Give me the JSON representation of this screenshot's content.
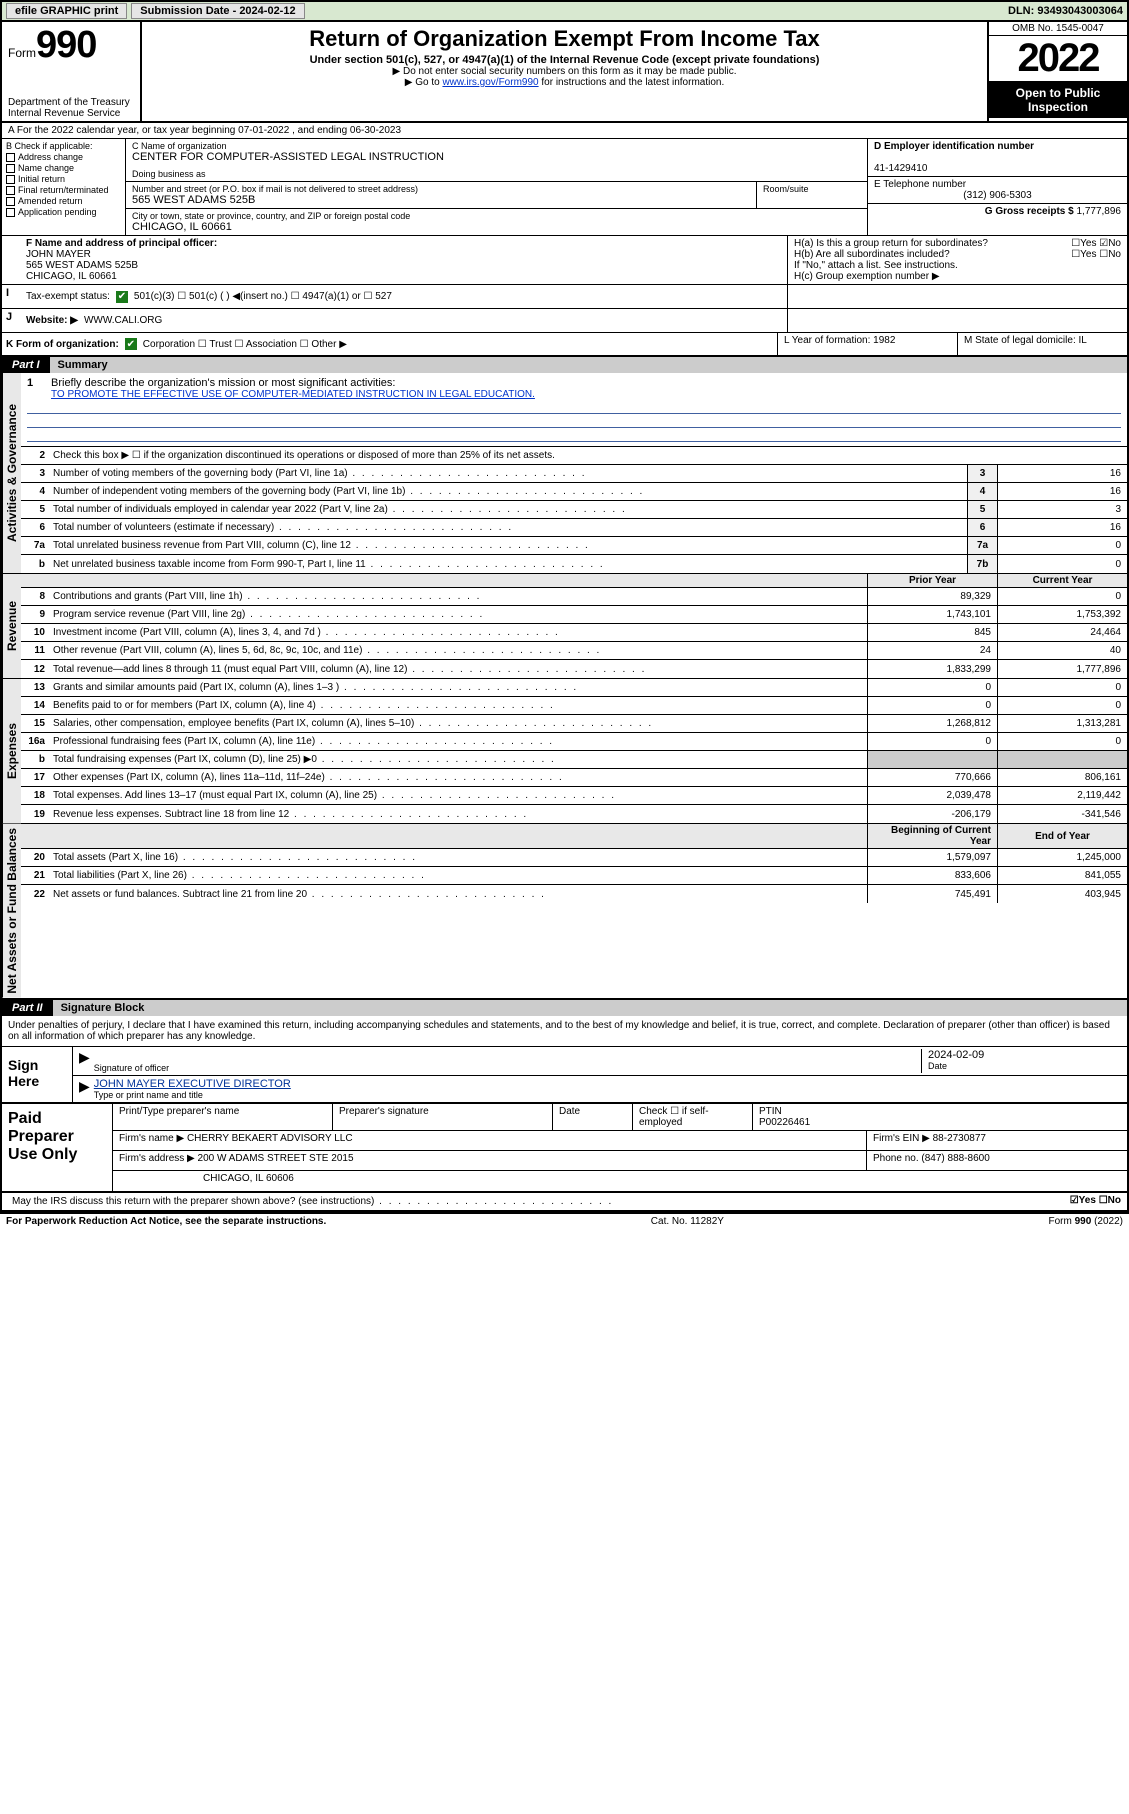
{
  "topbar": {
    "efile": "efile GRAPHIC print",
    "submission": "Submission Date - 2024-02-12",
    "dln": "DLN: 93493043003064"
  },
  "header": {
    "form_word": "Form",
    "form_num": "990",
    "dept": "Department of the Treasury",
    "irs": "Internal Revenue Service",
    "title": "Return of Organization Exempt From Income Tax",
    "sub": "Under section 501(c), 527, or 4947(a)(1) of the Internal Revenue Code (except private foundations)",
    "note1": "▶ Do not enter social security numbers on this form as it may be made public.",
    "note2_pre": "▶ Go to ",
    "note2_link": "www.irs.gov/Form990",
    "note2_post": " for instructions and the latest information.",
    "omb": "OMB No. 1545-0047",
    "year": "2022",
    "otpi": "Open to Public Inspection"
  },
  "row_a": {
    "text": "A For the 2022 calendar year, or tax year beginning 07-01-2022    , and ending 06-30-2023"
  },
  "col_b": {
    "hdr": "B Check if applicable:",
    "items": [
      "Address change",
      "Name change",
      "Initial return",
      "Final return/terminated",
      "Amended return",
      "Application pending"
    ]
  },
  "name_box": {
    "lbl": "C Name of organization",
    "val": "CENTER FOR COMPUTER-ASSISTED LEGAL INSTRUCTION",
    "dba_lbl": "Doing business as"
  },
  "addr": {
    "street_lbl": "Number and street (or P.O. box if mail is not delivered to street address)",
    "street": "565 WEST ADAMS 525B",
    "room_lbl": "Room/suite",
    "city_lbl": "City or town, state or province, country, and ZIP or foreign postal code",
    "city": "CHICAGO, IL  60661"
  },
  "col_d": {
    "ein_lbl": "D Employer identification number",
    "ein": "41-1429410",
    "tel_lbl": "E Telephone number",
    "tel": "(312) 906-5303",
    "gross_lbl": "G Gross receipts $",
    "gross": "1,777,896"
  },
  "row_f": {
    "lbl": "F Name and address of principal officer:",
    "name": "JOHN MAYER",
    "addr1": "565 WEST ADAMS 525B",
    "addr2": "CHICAGO, IL  60661"
  },
  "row_h": {
    "ha": "H(a)  Is this a group return for subordinates?",
    "ha_ans": "☐Yes ☑No",
    "hb": "H(b)  Are all subordinates included?",
    "hb_ans": "☐Yes ☐No",
    "hb_note": "If \"No,\" attach a list. See instructions.",
    "hc": "H(c)  Group exemption number ▶"
  },
  "row_i": {
    "lbl": "Tax-exempt status:",
    "opts": "501(c)(3)    ☐ 501(c) (  ) ◀(insert no.)    ☐ 4947(a)(1) or    ☐ 527"
  },
  "row_j": {
    "lbl": "Website: ▶",
    "val": "WWW.CALI.ORG"
  },
  "row_k": {
    "lbl": "K Form of organization:",
    "opts": "Corporation  ☐ Trust  ☐ Association  ☐ Other ▶",
    "l": "L Year of formation: 1982",
    "m": "M State of legal domicile: IL"
  },
  "part1": {
    "num": "Part I",
    "title": "Summary",
    "line1_lbl": "Briefly describe the organization's mission or most significant activities:",
    "line1_val": "TO PROMOTE THE EFFECTIVE USE OF COMPUTER-MEDIATED INSTRUCTION IN LEGAL EDUCATION.",
    "line2": "Check this box ▶ ☐  if the organization discontinued its operations or disposed of more than 25% of its net assets.",
    "sections": {
      "gov": "Activities & Governance",
      "rev": "Revenue",
      "exp": "Expenses",
      "net": "Net Assets or Fund Balances"
    },
    "gov_lines": [
      {
        "n": "3",
        "t": "Number of voting members of the governing body (Part VI, line 1a)",
        "b": "3",
        "v": "16"
      },
      {
        "n": "4",
        "t": "Number of independent voting members of the governing body (Part VI, line 1b)",
        "b": "4",
        "v": "16"
      },
      {
        "n": "5",
        "t": "Total number of individuals employed in calendar year 2022 (Part V, line 2a)",
        "b": "5",
        "v": "3"
      },
      {
        "n": "6",
        "t": "Total number of volunteers (estimate if necessary)",
        "b": "6",
        "v": "16"
      },
      {
        "n": "7a",
        "t": "Total unrelated business revenue from Part VIII, column (C), line 12",
        "b": "7a",
        "v": "0"
      },
      {
        "n": "b",
        "t": "Net unrelated business taxable income from Form 990-T, Part I, line 11",
        "b": "7b",
        "v": "0"
      }
    ],
    "py_hdr": "Prior Year",
    "cy_hdr": "Current Year",
    "rev_lines": [
      {
        "n": "8",
        "t": "Contributions and grants (Part VIII, line 1h)",
        "py": "89,329",
        "cy": "0"
      },
      {
        "n": "9",
        "t": "Program service revenue (Part VIII, line 2g)",
        "py": "1,743,101",
        "cy": "1,753,392"
      },
      {
        "n": "10",
        "t": "Investment income (Part VIII, column (A), lines 3, 4, and 7d )",
        "py": "845",
        "cy": "24,464"
      },
      {
        "n": "11",
        "t": "Other revenue (Part VIII, column (A), lines 5, 6d, 8c, 9c, 10c, and 11e)",
        "py": "24",
        "cy": "40"
      },
      {
        "n": "12",
        "t": "Total revenue—add lines 8 through 11 (must equal Part VIII, column (A), line 12)",
        "py": "1,833,299",
        "cy": "1,777,896"
      }
    ],
    "exp_lines": [
      {
        "n": "13",
        "t": "Grants and similar amounts paid (Part IX, column (A), lines 1–3 )",
        "py": "0",
        "cy": "0"
      },
      {
        "n": "14",
        "t": "Benefits paid to or for members (Part IX, column (A), line 4)",
        "py": "0",
        "cy": "0"
      },
      {
        "n": "15",
        "t": "Salaries, other compensation, employee benefits (Part IX, column (A), lines 5–10)",
        "py": "1,268,812",
        "cy": "1,313,281"
      },
      {
        "n": "16a",
        "t": "Professional fundraising fees (Part IX, column (A), line 11e)",
        "py": "0",
        "cy": "0"
      },
      {
        "n": "b",
        "t": "Total fundraising expenses (Part IX, column (D), line 25) ▶0",
        "py": "",
        "cy": ""
      },
      {
        "n": "17",
        "t": "Other expenses (Part IX, column (A), lines 11a–11d, 11f–24e)",
        "py": "770,666",
        "cy": "806,161"
      },
      {
        "n": "18",
        "t": "Total expenses. Add lines 13–17 (must equal Part IX, column (A), line 25)",
        "py": "2,039,478",
        "cy": "2,119,442"
      },
      {
        "n": "19",
        "t": "Revenue less expenses. Subtract line 18 from line 12",
        "py": "-206,179",
        "cy": "-341,546"
      }
    ],
    "bcy_hdr": "Beginning of Current Year",
    "eoy_hdr": "End of Year",
    "net_lines": [
      {
        "n": "20",
        "t": "Total assets (Part X, line 16)",
        "py": "1,579,097",
        "cy": "1,245,000"
      },
      {
        "n": "21",
        "t": "Total liabilities (Part X, line 26)",
        "py": "833,606",
        "cy": "841,055"
      },
      {
        "n": "22",
        "t": "Net assets or fund balances. Subtract line 21 from line 20",
        "py": "745,491",
        "cy": "403,945"
      }
    ]
  },
  "part2": {
    "num": "Part II",
    "title": "Signature Block",
    "decl": "Under penalties of perjury, I declare that I have examined this return, including accompanying schedules and statements, and to the best of my knowledge and belief, it is true, correct, and complete. Declaration of preparer (other than officer) is based on all information of which preparer has any knowledge."
  },
  "sign": {
    "lbl": "Sign Here",
    "sig_lbl": "Signature of officer",
    "date": "2024-02-09",
    "date_lbl": "Date",
    "name": "JOHN MAYER EXECUTIVE DIRECTOR",
    "name_lbl": "Type or print name and title"
  },
  "paid": {
    "lbl": "Paid Preparer Use Only",
    "h1": "Print/Type preparer's name",
    "h2": "Preparer's signature",
    "h3": "Date",
    "h4_pre": "Check ☐ if self-employed",
    "h5": "PTIN",
    "ptin": "P00226461",
    "firm_lbl": "Firm's name    ▶",
    "firm": "CHERRY BEKAERT ADVISORY LLC",
    "ein_lbl": "Firm's EIN ▶",
    "ein": "88-2730877",
    "addr_lbl": "Firm's address ▶",
    "addr": "200 W ADAMS STREET STE 2015",
    "addr2": "CHICAGO, IL  60606",
    "ph_lbl": "Phone no.",
    "ph": "(847) 888-8600"
  },
  "discuss": {
    "txt": "May the IRS discuss this return with the preparer shown above? (see instructions)",
    "ans": "☑Yes  ☐No"
  },
  "footer": {
    "l": "For Paperwork Reduction Act Notice, see the separate instructions.",
    "m": "Cat. No. 11282Y",
    "r": "Form 990 (2022)"
  }
}
